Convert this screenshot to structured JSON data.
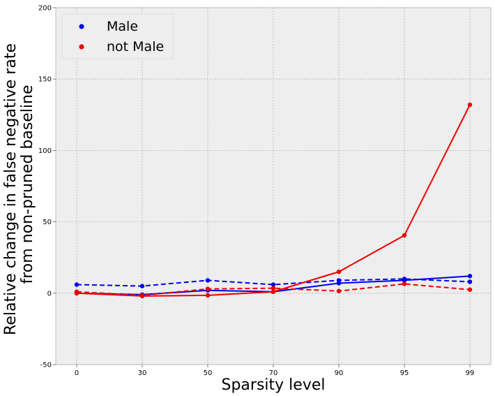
{
  "chart_data": {
    "type": "line",
    "title": "",
    "xlabel": "Sparsity level",
    "ylabel_lines": [
      "Relative change in false negative rate",
      "from non-pruned baseline"
    ],
    "categories": [
      "0",
      "30",
      "50",
      "70",
      "90",
      "95",
      "99"
    ],
    "ylim": [
      -50,
      200
    ],
    "yticks": [
      "-50",
      "0",
      "50",
      "100",
      "150",
      "200"
    ],
    "ytick_values": [
      -50,
      0,
      50,
      100,
      150,
      200
    ],
    "grid": true,
    "legend_position": "top-left",
    "legend": [
      {
        "label": "Male",
        "color": "#0000ee"
      },
      {
        "label": "not Male",
        "color": "#ee0000"
      }
    ],
    "series": [
      {
        "name": "Male",
        "style": "solid",
        "color": "#0000ee",
        "values": [
          0,
          -1,
          2,
          1,
          7,
          9,
          12
        ]
      },
      {
        "name": "Male",
        "style": "dashed",
        "color": "#0000ee",
        "values": [
          6,
          5,
          9,
          6,
          9,
          10,
          8
        ]
      },
      {
        "name": "not Male",
        "style": "solid",
        "color": "#ee0000",
        "values": [
          0,
          -2,
          -1.5,
          1,
          15,
          40.5,
          132
        ]
      },
      {
        "name": "not Male",
        "style": "dashed",
        "color": "#ee0000",
        "values": [
          1,
          -1.5,
          3,
          3.5,
          1.5,
          6.5,
          2.5
        ]
      }
    ]
  }
}
